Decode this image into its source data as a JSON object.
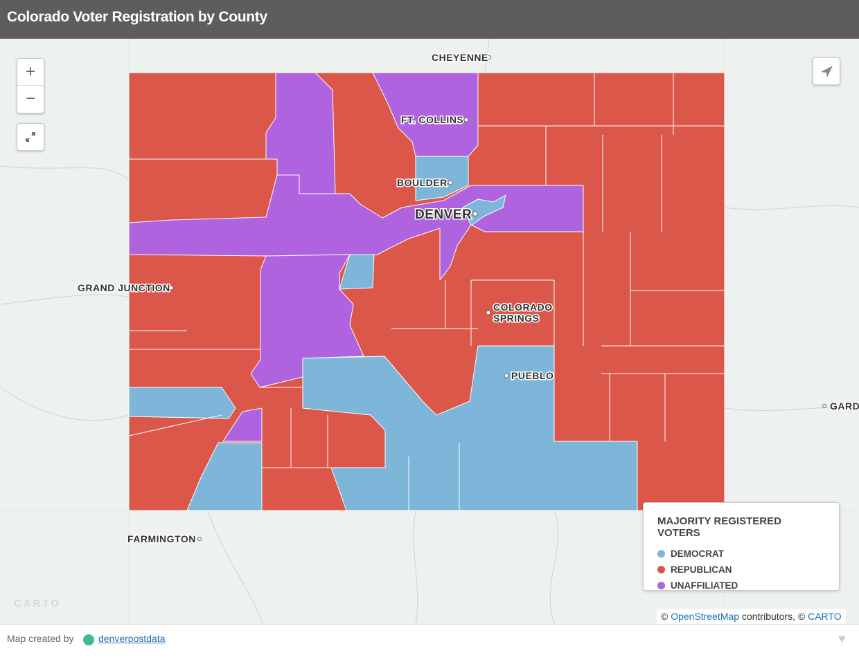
{
  "header": {
    "title": "Colorado Voter Registration by County"
  },
  "controls": {
    "zoom_in": "+",
    "zoom_out": "−"
  },
  "cities": [
    {
      "label": "CHEYENNE"
    },
    {
      "label": "FT. COLLINS"
    },
    {
      "label": "BOULDER"
    },
    {
      "label": "DENVER"
    },
    {
      "label": "GRAND JUNCTION"
    },
    {
      "lines": [
        "COLORADO",
        "SPRINGS"
      ]
    },
    {
      "label": "PUEBLO"
    },
    {
      "label": "FARMINGTON"
    },
    {
      "label": "GARD"
    }
  ],
  "legend": {
    "title": "MAJORITY REGISTERED VOTERS",
    "items": [
      {
        "label": "DEMOCRAT",
        "color": "#7db6d8"
      },
      {
        "label": "REPUBLICAN",
        "color": "#db574a"
      },
      {
        "label": "UNAFFILIATED",
        "color": "#b063de"
      }
    ]
  },
  "watermark": "CARTO",
  "attribution": {
    "symbol": "©",
    "osm": "OpenStreetMap",
    "middle": "contributors, ©",
    "carto": "CARTO"
  },
  "footer": {
    "credit": "Map created by",
    "link": "denverpostdata"
  }
}
